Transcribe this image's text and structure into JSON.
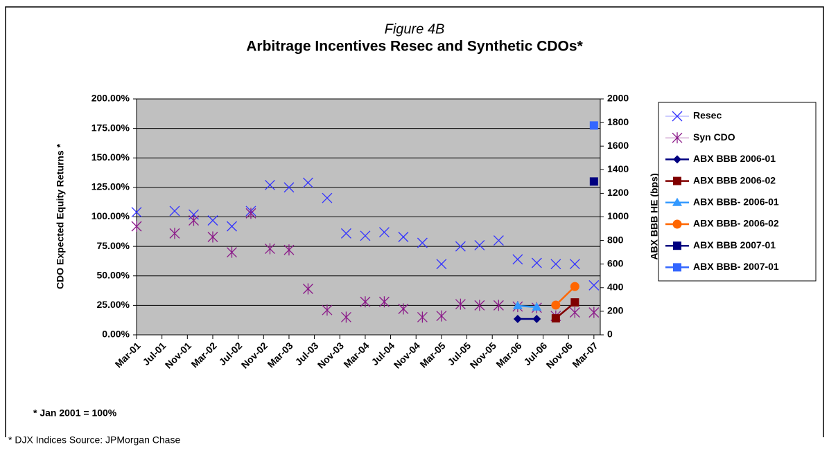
{
  "chart_data": {
    "type": "scatter",
    "figure_label": "Figure 4B",
    "title": "Arbitrage Incentives Resec and Synthetic CDOs*",
    "y_label": "CDO Expected Equity Returns *",
    "y2_label": "ABX BBB HE (bps)",
    "footnote": "* Jan 2001 = 100%",
    "source": "* DJX Indices Source: JPMorgan Chase",
    "legend": "right",
    "grid": true,
    "categories": [
      "Mar-01",
      null,
      null,
      null,
      "Jul-01",
      null,
      null,
      null,
      "Nov-01",
      null,
      null,
      null,
      "Mar-02",
      null,
      null,
      null,
      "Jul-02",
      null,
      null,
      null,
      "Nov-02",
      null,
      null,
      null,
      "Mar-03",
      null,
      null,
      null,
      "Jul-03",
      null,
      null,
      null,
      "Nov-03",
      null,
      null,
      null,
      "Mar-04",
      null,
      null,
      null,
      "Jul-04",
      null,
      null,
      null,
      "Nov-04",
      null,
      null,
      null,
      "Mar-05",
      null,
      null,
      null,
      "Jul-05",
      null,
      null,
      null,
      "Nov-05",
      null,
      null,
      null,
      "Mar-06",
      null,
      null,
      null,
      "Jul-06",
      null,
      null,
      null,
      "Nov-06",
      null,
      null,
      null,
      "Mar-07",
      null
    ],
    "ylim": [
      0,
      200
    ],
    "yticks": [
      {
        "value": 0,
        "label": "0.00%"
      },
      {
        "value": 25,
        "label": "25.00%"
      },
      {
        "value": 50,
        "label": "50.00%"
      },
      {
        "value": 75,
        "label": "75.00%"
      },
      {
        "value": 100,
        "label": "100.00%"
      },
      {
        "value": 125,
        "label": "125.00%"
      },
      {
        "value": 150,
        "label": "150.00%"
      },
      {
        "value": 175,
        "label": "175.00%"
      },
      {
        "value": 200,
        "label": "200.00%"
      }
    ],
    "y2lim": [
      0,
      2000
    ],
    "y2ticks": [
      0,
      200,
      400,
      600,
      800,
      1000,
      1200,
      1400,
      1600,
      1800,
      2000
    ],
    "series": [
      {
        "name": "Resec",
        "color": "#3333ff",
        "marker": "x",
        "line": false,
        "axis": "y",
        "values": [
          104,
          null,
          null,
          null,
          null,
          null,
          105,
          null,
          null,
          102,
          null,
          null,
          97,
          null,
          null,
          92,
          null,
          null,
          105,
          null,
          null,
          127,
          null,
          null,
          125,
          null,
          null,
          129,
          null,
          null,
          116,
          null,
          null,
          86,
          null,
          null,
          84,
          null,
          null,
          87,
          null,
          null,
          83,
          null,
          null,
          78,
          null,
          null,
          60,
          null,
          null,
          75,
          null,
          null,
          76,
          null,
          null,
          80,
          null,
          null,
          64,
          null,
          null,
          61,
          null,
          null,
          60,
          null,
          null,
          60,
          null,
          null,
          42,
          null
        ]
      },
      {
        "name": "Syn CDO",
        "color": "#8b1a89",
        "marker": "star",
        "line": false,
        "axis": "y",
        "values": [
          92,
          null,
          null,
          null,
          null,
          null,
          86,
          null,
          null,
          97,
          null,
          null,
          83,
          null,
          null,
          70,
          null,
          null,
          103,
          null,
          null,
          73,
          null,
          null,
          72,
          null,
          null,
          39,
          null,
          null,
          21,
          null,
          null,
          15,
          null,
          null,
          28,
          null,
          null,
          28,
          null,
          null,
          22,
          null,
          null,
          15,
          null,
          null,
          16,
          null,
          null,
          26,
          null,
          null,
          25,
          null,
          null,
          25,
          null,
          null,
          24,
          null,
          null,
          23,
          null,
          null,
          16,
          null,
          null,
          19,
          null,
          null,
          19,
          null
        ]
      },
      {
        "name": "ABX BBB 2006-01",
        "color": "#000080",
        "marker": "diamond",
        "line": true,
        "axis": "y2",
        "values": [
          null,
          null,
          null,
          null,
          null,
          null,
          null,
          null,
          null,
          null,
          null,
          null,
          null,
          null,
          null,
          null,
          null,
          null,
          null,
          null,
          null,
          null,
          null,
          null,
          null,
          null,
          null,
          null,
          null,
          null,
          null,
          null,
          null,
          null,
          null,
          null,
          null,
          null,
          null,
          null,
          null,
          null,
          null,
          null,
          null,
          null,
          null,
          null,
          null,
          null,
          null,
          null,
          null,
          null,
          null,
          null,
          null,
          null,
          null,
          null,
          135,
          null,
          null,
          135,
          null,
          null,
          null,
          null,
          null,
          null,
          null,
          null,
          null,
          null
        ]
      },
      {
        "name": "ABX BBB 2006-02",
        "color": "#800000",
        "marker": "square",
        "line": true,
        "axis": "y2",
        "values": [
          null,
          null,
          null,
          null,
          null,
          null,
          null,
          null,
          null,
          null,
          null,
          null,
          null,
          null,
          null,
          null,
          null,
          null,
          null,
          null,
          null,
          null,
          null,
          null,
          null,
          null,
          null,
          null,
          null,
          null,
          null,
          null,
          null,
          null,
          null,
          null,
          null,
          null,
          null,
          null,
          null,
          null,
          null,
          null,
          null,
          null,
          null,
          null,
          null,
          null,
          null,
          null,
          null,
          null,
          null,
          null,
          null,
          null,
          null,
          null,
          null,
          null,
          null,
          null,
          null,
          null,
          140,
          null,
          null,
          275,
          null,
          null,
          null,
          null
        ]
      },
      {
        "name": "ABX BBB- 2006-01",
        "color": "#3399ff",
        "marker": "triangle",
        "line": true,
        "axis": "y2",
        "values": [
          null,
          null,
          null,
          null,
          null,
          null,
          null,
          null,
          null,
          null,
          null,
          null,
          null,
          null,
          null,
          null,
          null,
          null,
          null,
          null,
          null,
          null,
          null,
          null,
          null,
          null,
          null,
          null,
          null,
          null,
          null,
          null,
          null,
          null,
          null,
          null,
          null,
          null,
          null,
          null,
          null,
          null,
          null,
          null,
          null,
          null,
          null,
          null,
          null,
          null,
          null,
          null,
          null,
          null,
          null,
          null,
          null,
          null,
          null,
          null,
          246,
          null,
          null,
          235,
          null,
          null,
          null,
          null,
          null,
          null,
          null,
          null,
          null,
          null
        ]
      },
      {
        "name": "ABX BBB- 2006-02",
        "color": "#ff6600",
        "marker": "circle",
        "line": true,
        "axis": "y2",
        "values": [
          null,
          null,
          null,
          null,
          null,
          null,
          null,
          null,
          null,
          null,
          null,
          null,
          null,
          null,
          null,
          null,
          null,
          null,
          null,
          null,
          null,
          null,
          null,
          null,
          null,
          null,
          null,
          null,
          null,
          null,
          null,
          null,
          null,
          null,
          null,
          null,
          null,
          null,
          null,
          null,
          null,
          null,
          null,
          null,
          null,
          null,
          null,
          null,
          null,
          null,
          null,
          null,
          null,
          null,
          null,
          null,
          null,
          null,
          null,
          null,
          null,
          null,
          null,
          null,
          null,
          null,
          252,
          null,
          null,
          410,
          null,
          null,
          null,
          null
        ]
      },
      {
        "name": "ABX BBB 2007-01",
        "color": "#000080",
        "marker": "square",
        "line": true,
        "axis": "y2",
        "values": [
          null,
          null,
          null,
          null,
          null,
          null,
          null,
          null,
          null,
          null,
          null,
          null,
          null,
          null,
          null,
          null,
          null,
          null,
          null,
          null,
          null,
          null,
          null,
          null,
          null,
          null,
          null,
          null,
          null,
          null,
          null,
          null,
          null,
          null,
          null,
          null,
          null,
          null,
          null,
          null,
          null,
          null,
          null,
          null,
          null,
          null,
          null,
          null,
          null,
          null,
          null,
          null,
          null,
          null,
          null,
          null,
          null,
          null,
          null,
          null,
          null,
          null,
          null,
          null,
          null,
          null,
          null,
          null,
          null,
          null,
          null,
          null,
          1300,
          null
        ]
      },
      {
        "name": "ABX BBB- 2007-01",
        "color": "#3366ff",
        "marker": "square",
        "line": true,
        "axis": "y2",
        "values": [
          null,
          null,
          null,
          null,
          null,
          null,
          null,
          null,
          null,
          null,
          null,
          null,
          null,
          null,
          null,
          null,
          null,
          null,
          null,
          null,
          null,
          null,
          null,
          null,
          null,
          null,
          null,
          null,
          null,
          null,
          null,
          null,
          null,
          null,
          null,
          null,
          null,
          null,
          null,
          null,
          null,
          null,
          null,
          null,
          null,
          null,
          null,
          null,
          null,
          null,
          null,
          null,
          null,
          null,
          null,
          null,
          null,
          null,
          null,
          null,
          null,
          null,
          null,
          null,
          null,
          null,
          null,
          null,
          null,
          null,
          null,
          null,
          1775,
          null
        ]
      }
    ]
  }
}
